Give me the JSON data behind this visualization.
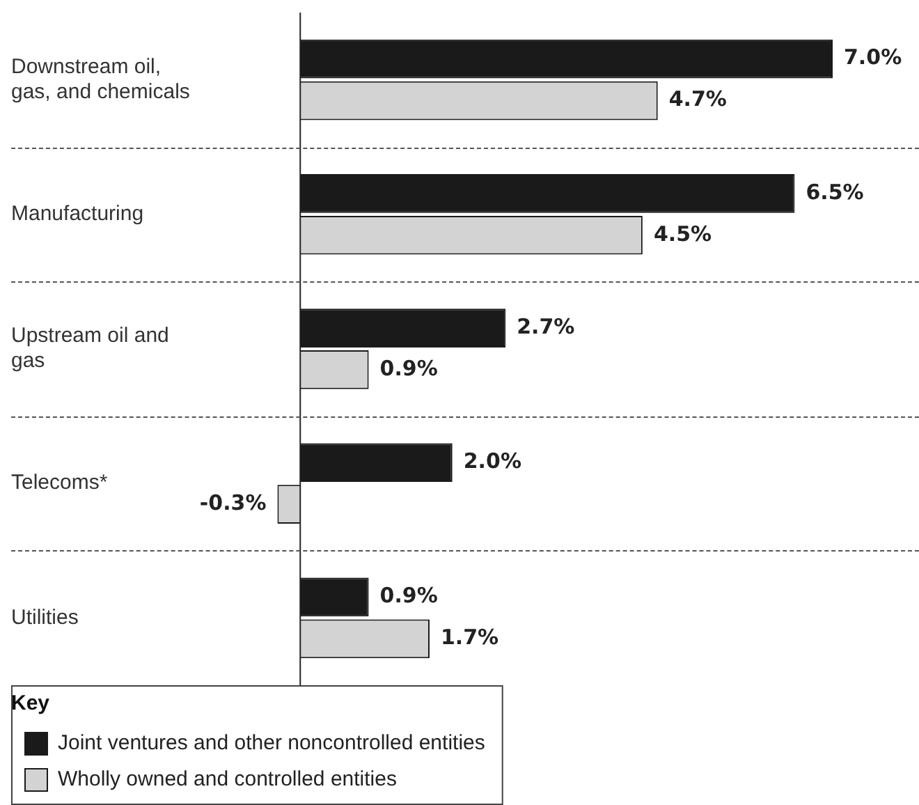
{
  "chart_data": {
    "type": "bar",
    "orientation": "horizontal",
    "legend": "bottom left",
    "legend_title": "Key",
    "categories": [
      "Downstream oil, gas, and chemicals",
      "Manufacturing",
      "Upstream oil and gas",
      "Telecoms*",
      "Utilities"
    ],
    "series": [
      {
        "name": "Joint ventures and other noncontrolled entities",
        "color": "#1a1a1a",
        "values": [
          7.0,
          6.5,
          2.7,
          2.0,
          0.9
        ],
        "value_labels": [
          "7.0%",
          "6.5%",
          "2.7%",
          "2.0%",
          "0.9%"
        ]
      },
      {
        "name": "Wholly owned and controlled entities",
        "color": "#d3d3d3",
        "values": [
          4.7,
          4.5,
          0.9,
          -0.3,
          1.7
        ],
        "value_labels": [
          "4.7%",
          "4.5%",
          "0.9%",
          "-0.3%",
          "1.7%"
        ]
      }
    ]
  }
}
